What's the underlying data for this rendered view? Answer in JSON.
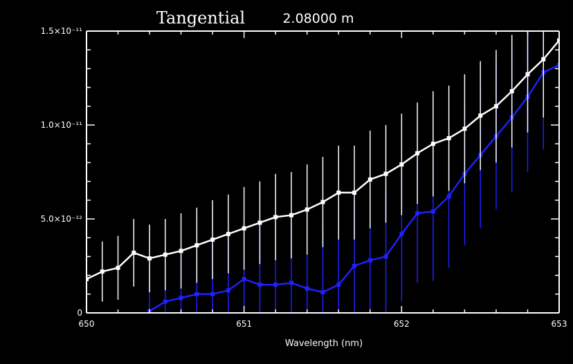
{
  "title": "Tangential",
  "subtitle": "2.08000 m",
  "chart_data": {
    "type": "line",
    "title": "Tangential",
    "subtitle": "2.08000 m",
    "xlabel": "Wavelength (nm)",
    "ylabel": "",
    "xlim": [
      650,
      653
    ],
    "ylim": [
      0,
      1.5e-11
    ],
    "xticks": [
      {
        "value": 650,
        "label": "650"
      },
      {
        "value": 651,
        "label": "651"
      },
      {
        "value": 652,
        "label": "652"
      },
      {
        "value": 653,
        "label": "653"
      }
    ],
    "yticks": [
      {
        "value": 0,
        "label": "0"
      },
      {
        "value": 5e-12,
        "label": "5.0×10⁻¹²"
      },
      {
        "value": 1e-11,
        "label": "1.0×10⁻¹¹"
      },
      {
        "value": 1.5e-11,
        "label": "1.5×10⁻¹¹"
      }
    ],
    "grid": false,
    "series": [
      {
        "color": "#ffffff",
        "errbar_color": "#ffffff",
        "x": [
          650.0,
          650.1,
          650.2,
          650.3,
          650.4,
          650.5,
          650.6,
          650.7,
          650.8,
          650.9,
          651.0,
          651.1,
          651.2,
          651.3,
          651.4,
          651.5,
          651.6,
          651.7,
          651.8,
          651.9,
          652.0,
          652.1,
          652.2,
          652.3,
          652.4,
          652.5,
          652.6,
          652.7,
          652.8,
          652.9,
          653.0
        ],
        "y": [
          1.8e-12,
          2.2e-12,
          2.4e-12,
          3.2e-12,
          2.9e-12,
          3.1e-12,
          3.3e-12,
          3.6e-12,
          3.9e-12,
          4.2e-12,
          4.5e-12,
          4.8e-12,
          5.1e-12,
          5.2e-12,
          5.5e-12,
          5.9e-12,
          6.4e-12,
          6.4e-12,
          7.1e-12,
          7.4e-12,
          7.9e-12,
          8.5e-12,
          9e-12,
          9.3e-12,
          9.8e-12,
          1.05e-11,
          1.1e-11,
          1.18e-11,
          1.27e-11,
          1.35e-11,
          1.45e-11
        ],
        "err": [
          1.3e-12,
          1.6e-12,
          1.7e-12,
          1.8e-12,
          1.8e-12,
          1.9e-12,
          2e-12,
          2e-12,
          2.1e-12,
          2.1e-12,
          2.2e-12,
          2.2e-12,
          2.3e-12,
          2.3e-12,
          2.4e-12,
          2.4e-12,
          2.5e-12,
          2.5e-12,
          2.6e-12,
          2.6e-12,
          2.7e-12,
          2.7e-12,
          2.8e-12,
          2.8e-12,
          2.9e-12,
          2.9e-12,
          3e-12,
          3e-12,
          3.1e-12,
          3.1e-12,
          3.2e-12
        ]
      },
      {
        "color": "#2020ff",
        "errbar_color": "#2020ff",
        "x": [
          650.0,
          650.1,
          650.2,
          650.3,
          650.4,
          650.5,
          650.6,
          650.7,
          650.8,
          650.9,
          651.0,
          651.1,
          651.2,
          651.3,
          651.4,
          651.5,
          651.6,
          651.7,
          651.8,
          651.9,
          652.0,
          652.1,
          652.2,
          652.3,
          652.4,
          652.5,
          652.6,
          652.7,
          652.8,
          652.9,
          653.0
        ],
        "y": [
          null,
          null,
          null,
          null,
          1e-13,
          6e-13,
          8e-13,
          1e-12,
          1e-12,
          1.2e-12,
          1.8e-12,
          1.5e-12,
          1.5e-12,
          1.6e-12,
          1.3e-12,
          1.1e-12,
          1.5e-12,
          2.5e-12,
          2.8e-12,
          3e-12,
          4.2e-12,
          5.3e-12,
          5.4e-12,
          6.2e-12,
          7.4e-12,
          8.4e-12,
          9.4e-12,
          1.04e-11,
          1.15e-11,
          1.28e-11,
          1.32e-11
        ],
        "err": [
          2.5e-12,
          2.6e-12,
          2.7e-12,
          2.8e-12,
          2.8e-12,
          2.9e-12,
          2.9e-12,
          3e-12,
          3e-12,
          3.1e-12,
          3.1e-12,
          3.2e-12,
          3.2e-12,
          3.3e-12,
          3.3e-12,
          3.4e-12,
          3.4e-12,
          3.5e-12,
          3.5e-12,
          3.6e-12,
          3.6e-12,
          3.7e-12,
          3.7e-12,
          3.8e-12,
          3.8e-12,
          3.9e-12,
          3.9e-12,
          4e-12,
          4e-12,
          4.1e-12,
          4.1e-12
        ]
      }
    ]
  }
}
